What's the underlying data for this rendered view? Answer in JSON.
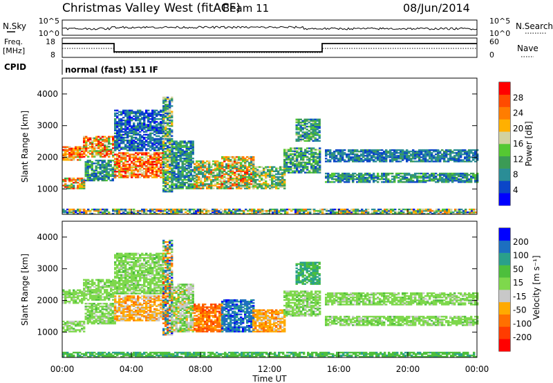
{
  "header": {
    "title": "Christmas Valley West (fitACF)",
    "beam": "Beam 11",
    "date": "08/Jun/2014"
  },
  "noise_panel": {
    "left_label": "N.Sky",
    "right_label": "N.Search",
    "ticks_top": "10^5",
    "ticks_bottom": "10^0"
  },
  "freq_panel": {
    "left_label_line1": "Freq.",
    "left_label_line2": "[MHz]",
    "right_label": "Nave",
    "left_ticks": [
      "18",
      "8"
    ],
    "right_ticks": [
      "60",
      "0"
    ]
  },
  "cpid_panel": {
    "label": "CPID",
    "text": "normal (fast) 151 IF"
  },
  "colors": {
    "palette": [
      "#0000ff",
      "#0b46c8",
      "#2a8d96",
      "#3b9b55",
      "#55c832",
      "#d2d2a0",
      "#ffb000",
      "#ff7d00",
      "#ff4b00",
      "#ff0000"
    ],
    "velocity_palette": [
      "#0000ff",
      "#1c6fc0",
      "#2aa08a",
      "#4dbf3c",
      "#7ed84c",
      "#c8c8c8",
      "#ffaa00",
      "#ff7000",
      "#ff3c00",
      "#ff0000"
    ]
  },
  "chart_data": [
    {
      "type": "heatmap",
      "name": "power",
      "ylabel": "Slant Range [km]",
      "y_ticks": [
        1000,
        2000,
        3000,
        4000
      ],
      "ylim": [
        200,
        4500
      ],
      "colorbar_label": "Power [dB]",
      "colorbar_ticks": [
        "4",
        "8",
        "12",
        "16",
        "20",
        "24",
        "28"
      ],
      "colorbar_range": [
        0,
        30
      ]
    },
    {
      "type": "heatmap",
      "name": "velocity",
      "ylabel": "Slant Range [km]",
      "y_ticks": [
        1000,
        2000,
        3000,
        4000
      ],
      "ylim": [
        200,
        4500
      ],
      "colorbar_label": "Velocity [m s⁻¹]",
      "colorbar_ticks": [
        "-200",
        "-100",
        "-50",
        "-15",
        "15",
        "50",
        "100",
        "200"
      ]
    }
  ],
  "x_axis": {
    "label": "Time UT",
    "ticks": [
      "00:00",
      "04:00",
      "08:00",
      "12:00",
      "16:00",
      "20:00",
      "00:00"
    ],
    "xlim": [
      0,
      24
    ]
  },
  "echo_regions": [
    {
      "t0": 0.0,
      "t1": 1.2,
      "r0": 1900,
      "r1": 2350,
      "pow": [
        14,
        30
      ],
      "vel": [
        -20,
        20
      ]
    },
    {
      "t0": 1.2,
      "t1": 3.0,
      "r0": 2000,
      "r1": 2650,
      "pow": [
        10,
        30
      ],
      "vel": [
        -20,
        20
      ]
    },
    {
      "t0": 0.0,
      "t1": 1.3,
      "r0": 1000,
      "r1": 1350,
      "pow": [
        8,
        28
      ],
      "vel": [
        -20,
        20
      ]
    },
    {
      "t0": 1.3,
      "t1": 3.0,
      "r0": 1250,
      "r1": 1900,
      "pow": [
        4,
        14
      ],
      "vel": [
        -20,
        20
      ]
    },
    {
      "t0": 3.0,
      "t1": 5.8,
      "r0": 1350,
      "r1": 2150,
      "pow": [
        14,
        30
      ],
      "vel": [
        -120,
        -20
      ]
    },
    {
      "t0": 3.0,
      "t1": 5.8,
      "r0": 2200,
      "r1": 3500,
      "pow": [
        2,
        10
      ],
      "vel": [
        -20,
        20
      ]
    },
    {
      "t0": 5.8,
      "t1": 6.3,
      "r0": 900,
      "r1": 3900,
      "pow": [
        4,
        20
      ],
      "vel": [
        -220,
        220
      ]
    },
    {
      "t0": 6.3,
      "t1": 7.6,
      "r0": 1000,
      "r1": 2500,
      "pow": [
        4,
        14
      ],
      "vel": [
        -60,
        40
      ]
    },
    {
      "t0": 7.6,
      "t1": 9.2,
      "r0": 1000,
      "r1": 1900,
      "pow": [
        6,
        26
      ],
      "vel": [
        -220,
        -60
      ]
    },
    {
      "t0": 9.2,
      "t1": 11.0,
      "r0": 1000,
      "r1": 2000,
      "pow": [
        6,
        28
      ],
      "vel": [
        60,
        220
      ]
    },
    {
      "t0": 11.0,
      "t1": 12.8,
      "r0": 1000,
      "r1": 1700,
      "pow": [
        6,
        20
      ],
      "vel": [
        -120,
        -40
      ]
    },
    {
      "t0": 12.8,
      "t1": 14.9,
      "r0": 1500,
      "r1": 2300,
      "pow": [
        4,
        16
      ],
      "vel": [
        -20,
        20
      ]
    },
    {
      "t0": 13.5,
      "t1": 14.9,
      "r0": 2500,
      "r1": 3200,
      "pow": [
        4,
        16
      ],
      "vel": [
        30,
        80
      ]
    },
    {
      "t0": 15.2,
      "t1": 24.0,
      "r0": 1850,
      "r1": 2250,
      "pow": [
        4,
        10
      ],
      "vel": [
        -20,
        20
      ]
    },
    {
      "t0": 15.2,
      "t1": 24.0,
      "r0": 1200,
      "r1": 1500,
      "pow": [
        4,
        14
      ],
      "vel": [
        -20,
        20
      ]
    },
    {
      "t0": 0.0,
      "t1": 24.0,
      "r0": 200,
      "r1": 350,
      "pow": [
        2,
        24
      ],
      "vel": [
        15,
        60
      ]
    }
  ]
}
